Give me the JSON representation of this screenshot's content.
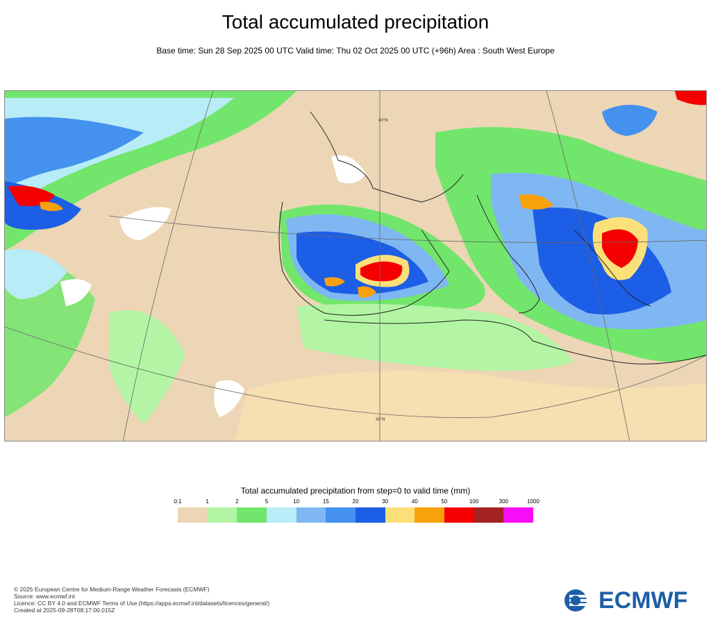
{
  "title": "Total accumulated precipitation",
  "subtitle": "Base time: Sun 28 Sep 2025 00 UTC Valid time: Thu 02 Oct 2025 00 UTC (+96h) Area : South West Europe",
  "map": {
    "lat_label_top": "40°N",
    "lat_label_bottom": "30°N"
  },
  "legend": {
    "title": "Total accumulated precipitation from step=0 to valid time (mm)",
    "ticks": [
      "0.1",
      "1",
      "2",
      "5",
      "10",
      "15",
      "20",
      "30",
      "40",
      "50",
      "100",
      "300",
      "1000"
    ],
    "colors": [
      "#ecd6b5",
      "#b3f5a4",
      "#72e66c",
      "#b8ecf6",
      "#7fb7f2",
      "#4491ee",
      "#1d5ee6",
      "#fbe07a",
      "#f9a10d",
      "#f40000",
      "#a32222",
      "#f70ff7"
    ]
  },
  "footer": {
    "copyright": "© 2025 European Centre for Medium-Range Weather Forecasts (ECMWF)",
    "source": "Source: www.ecmwf.int",
    "licence": "Licence: CC BY 4.0 and ECMWF Terms of Use (https://apps.ecmwf.int/datasets/licences/general/)",
    "created": "Created at 2025-09-28T08:17:00.015Z"
  },
  "logo": {
    "text": "ECMWF",
    "color": "#1f5fa8"
  }
}
